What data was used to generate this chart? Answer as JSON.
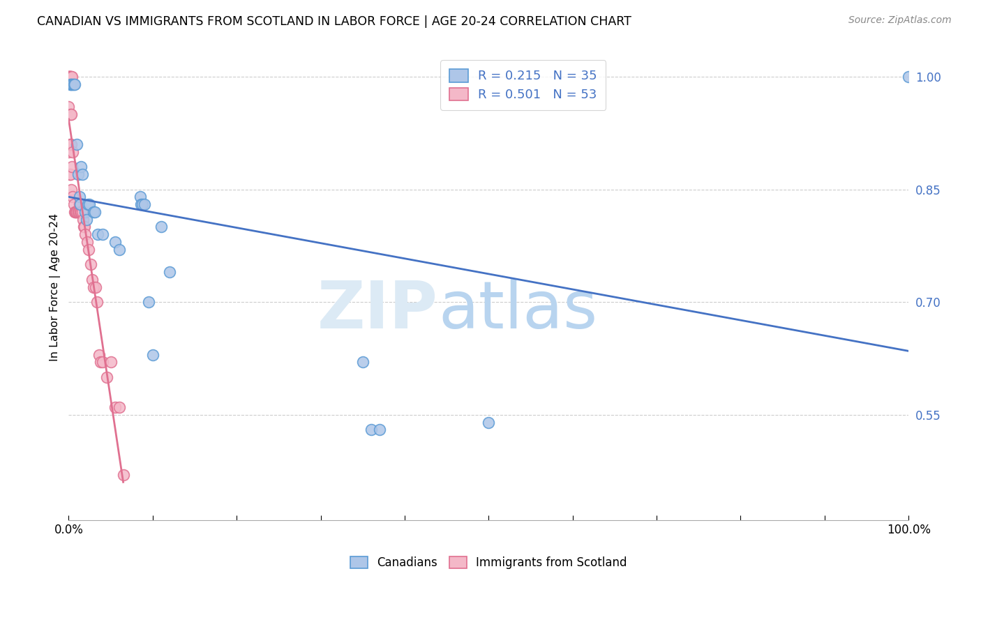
{
  "title": "CANADIAN VS IMMIGRANTS FROM SCOTLAND IN LABOR FORCE | AGE 20-24 CORRELATION CHART",
  "source": "Source: ZipAtlas.com",
  "ylabel": "In Labor Force | Age 20-24",
  "bg_color": "#ffffff",
  "grid_color": "#cccccc",
  "canadian_color": "#aec6e8",
  "scottish_color": "#f4b8c8",
  "canadian_edge_color": "#5b9bd5",
  "scottish_edge_color": "#e07090",
  "trend_canadian_color": "#4472c4",
  "trend_scottish_color": "#e07090",
  "legend_canadian_label": "R = 0.215   N = 35",
  "legend_scottish_label": "R = 0.501   N = 53",
  "xlim": [
    0.0,
    1.0
  ],
  "ylim": [
    0.41,
    1.03
  ],
  "yticks": [
    0.55,
    0.7,
    0.85,
    1.0
  ],
  "ytick_labels": [
    "55.0%",
    "70.0%",
    "85.0%",
    "100.0%"
  ],
  "canadian_x": [
    0.002,
    0.002,
    0.004,
    0.005,
    0.006,
    0.007,
    0.01,
    0.011,
    0.013,
    0.014,
    0.015,
    0.016,
    0.02,
    0.021,
    0.023,
    0.025,
    0.03,
    0.031,
    0.035,
    0.04,
    0.055,
    0.06,
    0.085,
    0.086,
    0.088,
    0.09,
    0.095,
    0.1,
    0.11,
    0.12,
    0.35,
    0.36,
    0.37,
    0.5,
    1.0
  ],
  "canadian_y": [
    0.99,
    0.99,
    0.99,
    0.99,
    0.99,
    0.99,
    0.91,
    0.87,
    0.84,
    0.83,
    0.88,
    0.87,
    0.82,
    0.81,
    0.83,
    0.83,
    0.82,
    0.82,
    0.79,
    0.79,
    0.78,
    0.77,
    0.84,
    0.83,
    0.83,
    0.83,
    0.7,
    0.63,
    0.8,
    0.74,
    0.62,
    0.53,
    0.53,
    0.54,
    1.0
  ],
  "scottish_x": [
    0.0,
    0.0,
    0.0,
    0.0,
    0.0,
    0.001,
    0.001,
    0.001,
    0.001,
    0.001,
    0.001,
    0.002,
    0.002,
    0.002,
    0.002,
    0.003,
    0.003,
    0.003,
    0.003,
    0.004,
    0.004,
    0.005,
    0.005,
    0.006,
    0.007,
    0.008,
    0.009,
    0.01,
    0.011,
    0.012,
    0.013,
    0.014,
    0.015,
    0.016,
    0.017,
    0.018,
    0.019,
    0.02,
    0.022,
    0.024,
    0.026,
    0.028,
    0.03,
    0.032,
    0.034,
    0.036,
    0.038,
    0.04,
    0.045,
    0.05,
    0.055,
    0.06,
    0.065
  ],
  "scottish_y": [
    1.0,
    1.0,
    1.0,
    0.96,
    0.9,
    1.0,
    1.0,
    1.0,
    1.0,
    0.91,
    0.87,
    1.0,
    1.0,
    0.95,
    0.87,
    1.0,
    0.95,
    0.91,
    0.85,
    1.0,
    0.88,
    0.9,
    0.84,
    0.83,
    0.82,
    0.82,
    0.82,
    0.82,
    0.82,
    0.82,
    0.83,
    0.82,
    0.82,
    0.82,
    0.81,
    0.8,
    0.8,
    0.79,
    0.78,
    0.77,
    0.75,
    0.73,
    0.72,
    0.72,
    0.7,
    0.63,
    0.62,
    0.62,
    0.6,
    0.62,
    0.56,
    0.56,
    0.47
  ],
  "scottish_trend_x": [
    0.0,
    0.065
  ],
  "scottish_trend_y": [
    1.0,
    0.47
  ]
}
